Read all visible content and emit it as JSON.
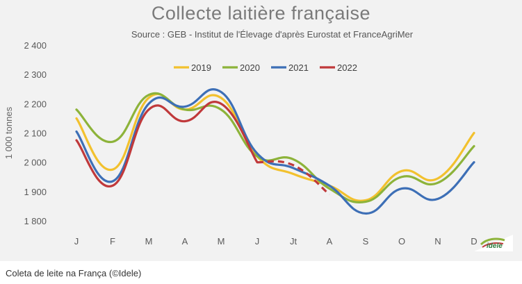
{
  "caption": "Coleta de leite na França (©Idele)",
  "logo_text": "idele",
  "chart_data": {
    "type": "line",
    "title": "Collecte laitière française",
    "subtitle": "Source : GEB - Institut de l'Élevage d'après Eurostat et FranceAgriMer",
    "ylabel": "1 000 tonnes",
    "xlabel": "",
    "ylim": [
      1800,
      2400
    ],
    "yticks": [
      1800,
      1900,
      2000,
      2100,
      2200,
      2300,
      2400
    ],
    "ytick_labels": [
      "1 800",
      "1 900",
      "2 000",
      "2 100",
      "2 200",
      "2 300",
      "2 400"
    ],
    "categories": [
      "J",
      "F",
      "M",
      "A",
      "M",
      "J",
      "Jt",
      "A",
      "S",
      "O",
      "N",
      "D"
    ],
    "legend_position": "top",
    "grid": false,
    "series": [
      {
        "name": "2019",
        "color": "#f2c12e",
        "values": [
          2150,
          1975,
          2220,
          2180,
          2220,
          2020,
          1960,
          1920,
          1870,
          1970,
          1945,
          2100
        ]
      },
      {
        "name": "2020",
        "color": "#8db33a",
        "values": [
          2180,
          2070,
          2230,
          2180,
          2180,
          2020,
          2010,
          1910,
          1865,
          1950,
          1930,
          2055
        ]
      },
      {
        "name": "2021",
        "color": "#3d6fb6",
        "values": [
          2105,
          1935,
          2200,
          2190,
          2240,
          2030,
          1980,
          1920,
          1825,
          1910,
          1875,
          2000
        ]
      },
      {
        "name": "2022",
        "color": "#c0393b",
        "values": [
          2075,
          1920,
          2180,
          2140,
          2200,
          2000,
          1990,
          1890,
          null,
          null,
          null,
          null
        ]
      }
    ]
  }
}
